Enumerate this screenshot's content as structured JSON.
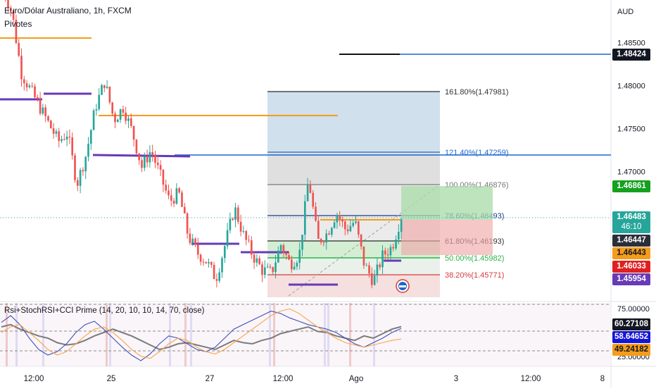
{
  "header": {
    "title": "Euro/Dólar Australiano, 1h, FXCM",
    "indicator": "Pivotes",
    "currency": "AUD"
  },
  "oscillator": {
    "label": "Rsi+StochRSI+CCI Prime (14, 20, 10, 10, 14, 70, close)",
    "axis_top": "75.00000",
    "axis_bottom": "25.00000",
    "tags": [
      "60.27108",
      "58.64652",
      "49.24182"
    ]
  },
  "price_tags": {
    "tag_148424": "1.48424",
    "tag_146861": "1.46861",
    "tag_146483": "1.46483",
    "countdown": "46:10",
    "tag_146447": "1.46447",
    "tag_146443": "1.46443",
    "tag_146033": "1.46033",
    "tag_145954": "1.45954"
  },
  "fib_labels": {
    "l1618": "161.80%(1.47981)",
    "l1214": "121.40%(1.47259)",
    "l1000": "100.00%(1.46876)",
    "l786": "78.60%(1.46493)",
    "l618": "61.80%(1.46193)",
    "l500": "50.00%(1.45982)",
    "l382": "38.20%(1.45771)"
  },
  "colors": {
    "up": "#26a69a",
    "down": "#ef5350",
    "pivot_orange": "#f59c1a",
    "pivot_purple": "#673ab7",
    "fib_blue": "#1e66d0",
    "rsi": "#7b7b7b",
    "stoch": "#3f51b5",
    "cci": "#f7a54a"
  },
  "chart_data": [
    {
      "type": "candlestick",
      "title": "Euro/Dólar Australiano, 1h, FXCM",
      "x_ticks": [
        "12:00",
        "25",
        "27",
        "12:00",
        "Ago",
        "3",
        "12:00",
        "8"
      ],
      "y_ticks": [
        1.485,
        1.48,
        1.475,
        1.47
      ],
      "ylim": [
        1.4555,
        1.4885
      ],
      "grid": false,
      "close_path": [
        1.4915,
        1.4885,
        1.4815,
        1.4795,
        1.4775,
        1.4755,
        1.4735,
        1.4745,
        1.4685,
        1.472,
        1.4775,
        1.4805,
        1.476,
        1.4775,
        1.4745,
        1.4705,
        1.4725,
        1.4695,
        1.4665,
        1.4675,
        1.4625,
        1.4605,
        1.4595,
        1.4575,
        1.4615,
        1.4658,
        1.4625,
        1.4602,
        1.4585,
        1.4582,
        1.4615,
        1.4592,
        1.4603,
        1.4692,
        1.4618,
        1.4628,
        1.4652,
        1.4632,
        1.4642,
        1.4592,
        1.4572,
        1.4602,
        1.4612,
        1.4648
      ],
      "levels": {
        "fib_161_8": 1.47981,
        "fib_121_4": 1.47259,
        "fib_100": 1.46876,
        "fib_78_6": 1.46493,
        "fib_61_8": 1.46193,
        "fib_50": 1.45982,
        "fib_38_2": 1.45771
      }
    },
    {
      "type": "line",
      "title": "Rsi+StochRSI+CCI Prime (14, 20, 10, 10, 14, 70, close)",
      "ylim": [
        25,
        80
      ],
      "reference_lines": [
        75,
        50,
        25
      ],
      "series": [
        {
          "values": [
            60,
            62,
            58,
            55,
            52,
            50,
            46,
            44,
            45,
            48,
            52,
            55,
            58,
            55,
            52,
            48,
            44,
            40,
            42,
            45,
            46,
            44,
            42,
            40,
            44,
            48,
            46,
            45,
            48,
            50,
            54,
            56,
            58,
            60,
            56,
            55,
            52,
            50,
            48,
            52,
            50,
            54,
            58,
            60.27
          ]
        },
        {
          "values": [
            64,
            70,
            62,
            50,
            40,
            35,
            38,
            45,
            55,
            62,
            65,
            58,
            50,
            42,
            35,
            30,
            36,
            45,
            52,
            50,
            45,
            40,
            38,
            42,
            50,
            58,
            62,
            66,
            70,
            74,
            72,
            68,
            65,
            62,
            60,
            58,
            55,
            50,
            45,
            42,
            46,
            50,
            55,
            58.65
          ]
        },
        {
          "values": [
            55,
            60,
            62,
            55,
            48,
            40,
            35,
            38,
            45,
            52,
            58,
            60,
            55,
            48,
            40,
            34,
            32,
            38,
            45,
            50,
            48,
            42,
            38,
            36,
            40,
            46,
            52,
            58,
            64,
            70,
            74,
            76,
            72,
            66,
            60,
            55,
            50,
            46,
            44,
            42,
            44,
            46,
            48,
            49.24
          ]
        }
      ]
    }
  ]
}
